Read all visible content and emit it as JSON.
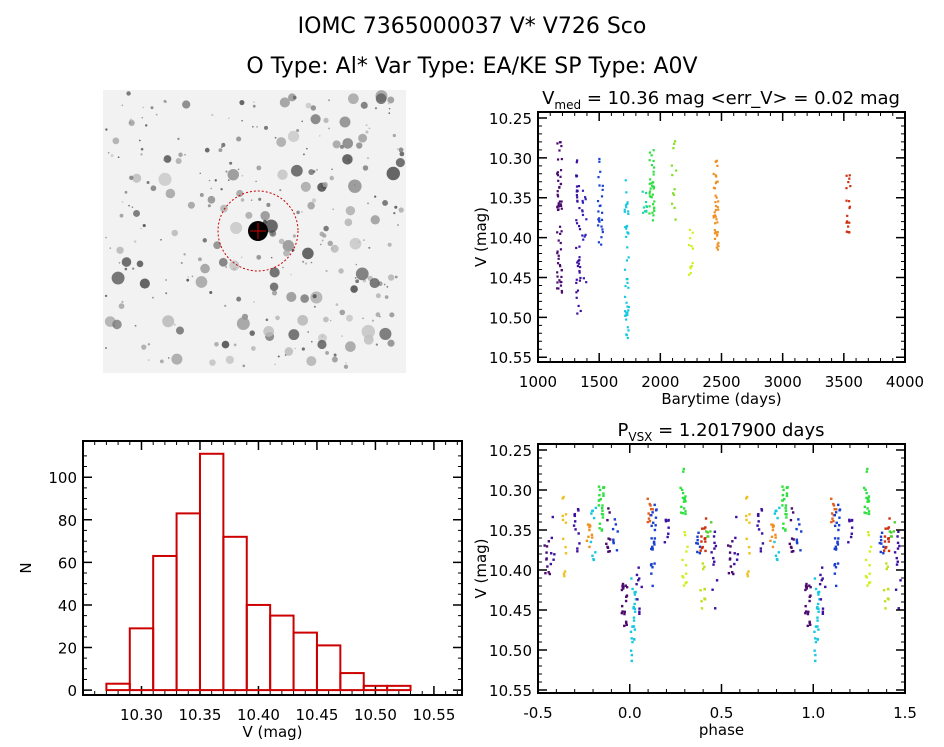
{
  "title": {
    "line1": "IOMC 7365000037    V* V726 Sco",
    "line2": "O Type: Al*  Var Type: EA/KE  SP Type: A0V"
  },
  "chart_data": [
    {
      "type": "image",
      "name": "finder-chart",
      "marker_color": "#cc0000"
    },
    {
      "type": "scatter",
      "name": "light-curve",
      "title": "V",
      "title_sub": "med",
      "title_rest": " = 10.36 mag <err_V> = 0.02 mag",
      "xlabel": "Barytime (days)",
      "ylabel": "V (mag)",
      "xlim": [
        1000,
        4000
      ],
      "ylim": [
        10.2425,
        10.556
      ],
      "y_inverted": true,
      "xticks": [
        "1000",
        "1500",
        "2000",
        "2500",
        "3000",
        "3500",
        "4000"
      ],
      "yticks": [
        "10.25",
        "10.30",
        "10.35",
        "10.40",
        "10.45",
        "10.50",
        "10.55"
      ],
      "clusters": [
        {
          "x": 1175,
          "ymin": 10.28,
          "ymax": 10.47,
          "n": 60,
          "color": "#4a0a6e"
        },
        {
          "x": 1330,
          "ymin": 10.3,
          "ymax": 10.5,
          "n": 40,
          "color": "#3c10a0"
        },
        {
          "x": 1375,
          "ymin": 10.33,
          "ymax": 10.47,
          "n": 15,
          "color": "#3322b8"
        },
        {
          "x": 1510,
          "ymin": 10.3,
          "ymax": 10.41,
          "n": 25,
          "color": "#1a40d0"
        },
        {
          "x": 1725,
          "ymin": 10.32,
          "ymax": 10.53,
          "n": 45,
          "color": "#18c8e0"
        },
        {
          "x": 1870,
          "ymin": 10.34,
          "ymax": 10.37,
          "n": 10,
          "color": "#20d8a0"
        },
        {
          "x": 1930,
          "ymin": 10.29,
          "ymax": 10.38,
          "n": 35,
          "color": "#30e040"
        },
        {
          "x": 2110,
          "ymin": 10.27,
          "ymax": 10.39,
          "n": 12,
          "color": "#80e020"
        },
        {
          "x": 2250,
          "ymin": 10.39,
          "ymax": 10.45,
          "n": 12,
          "color": "#d0f020"
        },
        {
          "x": 2455,
          "ymin": 10.3,
          "ymax": 10.42,
          "n": 40,
          "color": "#f09020"
        },
        {
          "x": 3535,
          "ymin": 10.32,
          "ymax": 10.4,
          "n": 20,
          "color": "#d03010"
        }
      ]
    },
    {
      "type": "bar",
      "name": "histogram",
      "xlabel": "V (mag)",
      "ylabel": "N",
      "bin_edges": [
        10.27,
        10.29,
        10.31,
        10.33,
        10.35,
        10.37,
        10.39,
        10.41,
        10.43,
        10.45,
        10.47,
        10.49,
        10.51,
        10.53
      ],
      "values": [
        3,
        29,
        63,
        83,
        111,
        72,
        40,
        35,
        27,
        21,
        8,
        2,
        2
      ],
      "xlim": [
        10.25,
        10.574
      ],
      "ylim": [
        -2.3,
        117
      ],
      "xticks": [
        "10.30",
        "10.35",
        "10.40",
        "10.45",
        "10.50",
        "10.55"
      ],
      "yticks": [
        "0",
        "20",
        "40",
        "60",
        "80",
        "100"
      ],
      "bar_color": "#cc0000"
    },
    {
      "type": "scatter",
      "name": "phased-light-curve",
      "title": "P",
      "title_sub": "VSX",
      "title_rest": " = 1.2017900 days",
      "xlabel": "phase",
      "ylabel": "V (mag)",
      "xlim": [
        -0.5,
        1.5
      ],
      "ylim": [
        10.2425,
        10.5537
      ],
      "y_inverted": true,
      "xticks": [
        "-0.5",
        "0.0",
        "0.5",
        "1.0",
        "1.5"
      ],
      "yticks": [
        "10.25",
        "10.30",
        "10.35",
        "10.40",
        "10.45",
        "10.50",
        "10.55"
      ],
      "clusters": [
        {
          "x": 0.55,
          "ymin": 10.36,
          "ymax": 10.41,
          "n": 10,
          "color": "#4a0a6e"
        },
        {
          "x": 0.58,
          "ymin": 10.33,
          "ymax": 10.4,
          "n": 6,
          "color": "#3c10a0"
        },
        {
          "x": 0.64,
          "ymin": 10.3,
          "ymax": 10.41,
          "n": 12,
          "color": "#f0c020"
        },
        {
          "x": 0.71,
          "ymin": 10.32,
          "ymax": 10.39,
          "n": 12,
          "color": "#3c10a0"
        },
        {
          "x": 0.78,
          "ymin": 10.34,
          "ymax": 10.38,
          "n": 10,
          "color": "#f09020"
        },
        {
          "x": 0.8,
          "ymin": 10.32,
          "ymax": 10.39,
          "n": 10,
          "color": "#18c8e0"
        },
        {
          "x": 0.845,
          "ymin": 10.29,
          "ymax": 10.36,
          "n": 22,
          "color": "#30e040"
        },
        {
          "x": 0.88,
          "ymin": 10.32,
          "ymax": 10.38,
          "n": 10,
          "color": "#4a0a6e"
        },
        {
          "x": 0.92,
          "ymin": 10.33,
          "ymax": 10.38,
          "n": 8,
          "color": "#1a40d0"
        },
        {
          "x": 0.97,
          "ymin": 10.41,
          "ymax": 10.47,
          "n": 20,
          "color": "#4a0a6e"
        },
        {
          "x": 0.02,
          "ymin": 10.41,
          "ymax": 10.53,
          "n": 25,
          "color": "#18c8e0"
        },
        {
          "x": 0.05,
          "ymin": 10.39,
          "ymax": 10.47,
          "n": 10,
          "color": "#3c10a0"
        },
        {
          "x": 0.11,
          "ymin": 10.31,
          "ymax": 10.34,
          "n": 10,
          "color": "#e06020"
        },
        {
          "x": 0.13,
          "ymin": 10.3,
          "ymax": 10.42,
          "n": 25,
          "color": "#1a40d0"
        },
        {
          "x": 0.2,
          "ymin": 10.33,
          "ymax": 10.37,
          "n": 8,
          "color": "#3c10a0"
        },
        {
          "x": 0.29,
          "ymin": 10.27,
          "ymax": 10.33,
          "n": 18,
          "color": "#30e040"
        },
        {
          "x": 0.3,
          "ymin": 10.34,
          "ymax": 10.42,
          "n": 12,
          "color": "#d0f020"
        },
        {
          "x": 0.37,
          "ymin": 10.35,
          "ymax": 10.39,
          "n": 8,
          "color": "#1a40d0"
        },
        {
          "x": 0.4,
          "ymin": 10.33,
          "ymax": 10.38,
          "n": 14,
          "color": "#d03010"
        },
        {
          "x": 0.395,
          "ymin": 10.39,
          "ymax": 10.45,
          "n": 10,
          "color": "#c0e020"
        },
        {
          "x": 0.43,
          "ymin": 10.34,
          "ymax": 10.36,
          "n": 6,
          "color": "#50d030"
        },
        {
          "x": 0.46,
          "ymin": 10.34,
          "ymax": 10.47,
          "n": 12,
          "color": "#3c10a0"
        }
      ]
    }
  ]
}
